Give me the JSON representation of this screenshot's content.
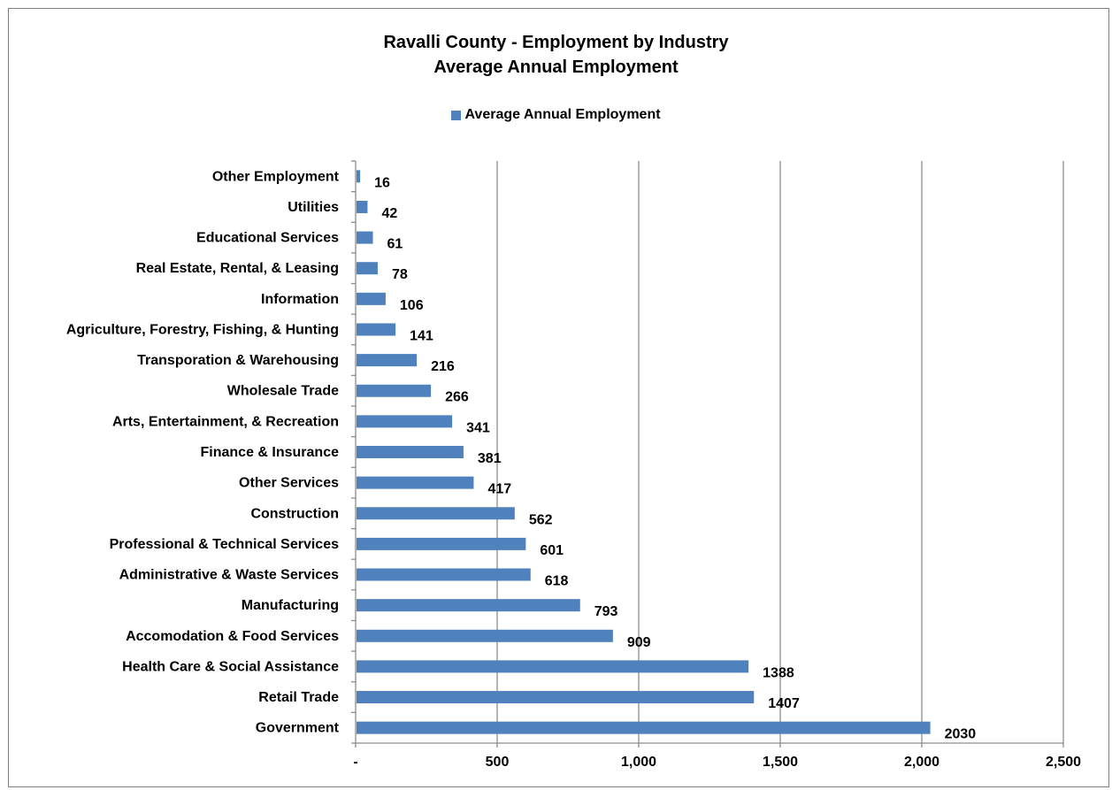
{
  "chart_data": {
    "type": "bar",
    "orientation": "horizontal",
    "title": "Ravalli County - Employment by Industry",
    "subtitle": "Average Annual Employment",
    "xlabel": "",
    "ylabel": "",
    "xlim": [
      0,
      2500
    ],
    "x_ticks": [
      0,
      500,
      1000,
      1500,
      2000,
      2500
    ],
    "x_tick_labels": [
      "-",
      "500",
      "1,000",
      "1,500",
      "2,000",
      "2,500"
    ],
    "grid": true,
    "legend_position": "top",
    "bar_color": "#4f81bd",
    "categories": [
      "Other Employment",
      "Utilities",
      "Educational Services",
      "Real Estate, Rental, & Leasing",
      "Information",
      "Agriculture, Forestry, Fishing, & Hunting",
      "Transporation & Warehousing",
      "Wholesale Trade",
      "Arts, Entertainment, & Recreation",
      "Finance & Insurance",
      "Other Services",
      "Construction",
      "Professional & Technical Services",
      "Administrative & Waste Services",
      "Manufacturing",
      "Accomodation & Food Services",
      "Health Care & Social Assistance",
      "Retail Trade",
      "Government"
    ],
    "series": [
      {
        "name": "Average Annual Employment",
        "values": [
          16,
          42,
          61,
          78,
          106,
          141,
          216,
          266,
          341,
          381,
          417,
          562,
          601,
          618,
          793,
          909,
          1388,
          1407,
          2030
        ]
      }
    ]
  }
}
